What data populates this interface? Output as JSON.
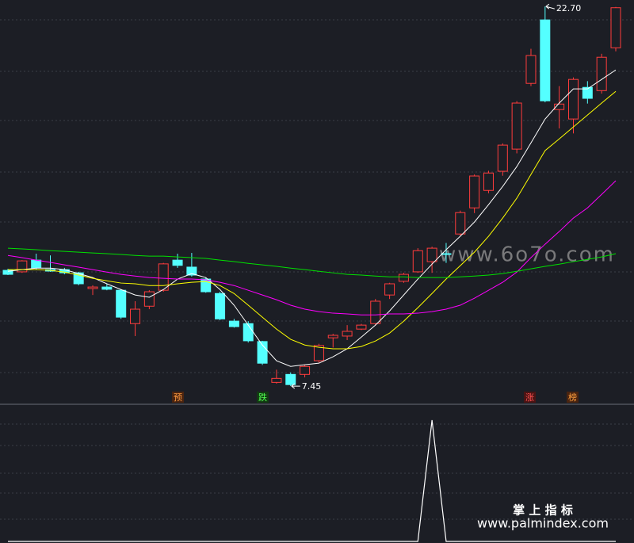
{
  "chart_data": [
    {
      "type": "candlestick",
      "open": [
        12.1,
        12.04,
        12.51,
        12.13,
        12.13,
        12.0,
        11.37,
        11.43,
        11.3,
        9.96,
        10.66,
        11.3,
        12.51,
        12.23,
        11.75,
        11.17,
        10.06,
        9.96,
        9.24,
        7.6,
        7.92,
        7.92,
        8.47,
        9.39,
        9.46,
        9.74,
        9.96,
        11.11,
        11.66,
        12.04,
        12.45,
        12.77,
        13.56,
        14.61,
        15.31,
        16.08,
        16.97,
        19.61,
        22.16,
        18.56,
        18.18,
        19.45,
        19.32,
        21.04
      ],
      "high": [
        12.16,
        12.51,
        12.77,
        12.7,
        12.2,
        12.04,
        11.5,
        11.56,
        11.34,
        10.86,
        11.3,
        12.4,
        12.77,
        12.8,
        11.8,
        11.24,
        10.15,
        10.06,
        9.27,
        8.11,
        8.0,
        8.3,
        9.15,
        9.55,
        9.9,
        9.95,
        10.95,
        11.6,
        12.0,
        12.99,
        13.05,
        13.2,
        14.5,
        15.95,
        16.1,
        17.2,
        18.9,
        21.0,
        22.7,
        19.5,
        19.85,
        19.7,
        20.8,
        22.68
      ],
      "low": [
        11.91,
        12.0,
        12.13,
        12.04,
        11.94,
        11.5,
        11.11,
        11.3,
        10.15,
        9.46,
        10.54,
        11.24,
        12.2,
        11.85,
        11.2,
        10.1,
        9.8,
        9.2,
        8.3,
        7.55,
        7.45,
        7.8,
        8.4,
        9.0,
        9.3,
        9.7,
        9.9,
        10.95,
        11.6,
        12.0,
        12.0,
        12.4,
        13.5,
        14.4,
        15.2,
        15.9,
        16.8,
        19.5,
        18.85,
        17.8,
        17.6,
        18.8,
        19.2,
        20.9
      ],
      "close": [
        11.94,
        12.48,
        12.2,
        12.07,
        12.0,
        11.56,
        11.43,
        11.34,
        10.22,
        10.54,
        11.24,
        12.36,
        12.3,
        11.91,
        11.24,
        10.15,
        9.84,
        9.27,
        8.37,
        7.76,
        7.51,
        8.24,
        9.08,
        9.49,
        9.65,
        9.9,
        10.86,
        11.56,
        11.94,
        12.89,
        12.99,
        12.75,
        14.42,
        15.89,
        16.01,
        17.13,
        18.82,
        20.73,
        18.91,
        18.78,
        19.77,
        19.01,
        20.66,
        22.65
      ],
      "up_color": "#ff3c3c",
      "down_color": "#54ffff",
      "lines": [
        {
          "color": "#ffffff",
          "values": [
            12.06,
            12.13,
            12.19,
            12.19,
            12.13,
            11.97,
            11.81,
            11.56,
            11.33,
            11.11,
            11.02,
            11.33,
            11.75,
            11.97,
            11.81,
            11.33,
            10.7,
            9.9,
            9.1,
            8.47,
            8.24,
            8.31,
            8.37,
            8.63,
            8.95,
            9.42,
            9.9,
            10.47,
            11.11,
            11.75,
            12.35,
            12.93,
            13.47,
            14.04,
            14.74,
            15.47,
            16.27,
            17.22,
            18.18,
            18.82,
            19.39,
            19.39,
            19.77,
            20.15
          ]
        },
        {
          "color": "#ffff00",
          "values": [
            12.13,
            12.13,
            12.13,
            12.1,
            12.03,
            11.91,
            11.78,
            11.68,
            11.59,
            11.56,
            11.49,
            11.49,
            11.56,
            11.62,
            11.65,
            11.49,
            11.17,
            10.7,
            10.22,
            9.74,
            9.33,
            9.1,
            9.01,
            8.95,
            8.95,
            9.04,
            9.26,
            9.58,
            10.06,
            10.6,
            11.17,
            11.75,
            12.29,
            12.83,
            13.47,
            14.2,
            15.0,
            15.95,
            16.91,
            17.38,
            17.86,
            18.34,
            18.82,
            19.29
          ]
        },
        {
          "color": "#ff00ff",
          "values": [
            12.7,
            12.61,
            12.51,
            12.42,
            12.32,
            12.23,
            12.13,
            12.03,
            11.94,
            11.87,
            11.81,
            11.78,
            11.75,
            11.75,
            11.72,
            11.62,
            11.49,
            11.3,
            11.11,
            10.92,
            10.7,
            10.54,
            10.44,
            10.38,
            10.35,
            10.31,
            10.31,
            10.35,
            10.35,
            10.38,
            10.44,
            10.54,
            10.7,
            10.98,
            11.3,
            11.62,
            12.03,
            12.61,
            13.15,
            13.66,
            14.2,
            14.61,
            15.15,
            15.7
          ]
        },
        {
          "color": "#00e000",
          "values": [
            12.99,
            12.96,
            12.93,
            12.89,
            12.86,
            12.83,
            12.8,
            12.77,
            12.74,
            12.7,
            12.67,
            12.67,
            12.64,
            12.61,
            12.58,
            12.51,
            12.45,
            12.38,
            12.32,
            12.26,
            12.19,
            12.13,
            12.06,
            12.0,
            11.94,
            11.91,
            11.87,
            11.84,
            11.84,
            11.81,
            11.81,
            11.81,
            11.84,
            11.87,
            11.91,
            11.97,
            12.06,
            12.16,
            12.26,
            12.35,
            12.45,
            12.54,
            12.64,
            12.77
          ]
        }
      ],
      "ylim": [
        6.72,
        22.96
      ],
      "annotations": [
        {
          "value": 22.7,
          "label": "22.70"
        },
        {
          "value": 7.45,
          "label": "7.45"
        }
      ],
      "signals": [
        "预",
        "跌",
        "涨",
        "榜"
      ],
      "watermark": "www.6o7o.com"
    },
    {
      "type": "line",
      "color": "#ffffff",
      "values": [
        0,
        0,
        0,
        0,
        0,
        0,
        0,
        0,
        0,
        0,
        0,
        0,
        0,
        0,
        0,
        0,
        0,
        0,
        0,
        0,
        0,
        0,
        0,
        0,
        0,
        0,
        0,
        0,
        0,
        0,
        1,
        0,
        0,
        0,
        0,
        0,
        0,
        0,
        0,
        0,
        0,
        0,
        0,
        0
      ],
      "ylim": [
        0,
        1
      ]
    }
  ],
  "footer": {
    "brand": "掌 上 指 标",
    "url": "www.palmindex.com"
  }
}
